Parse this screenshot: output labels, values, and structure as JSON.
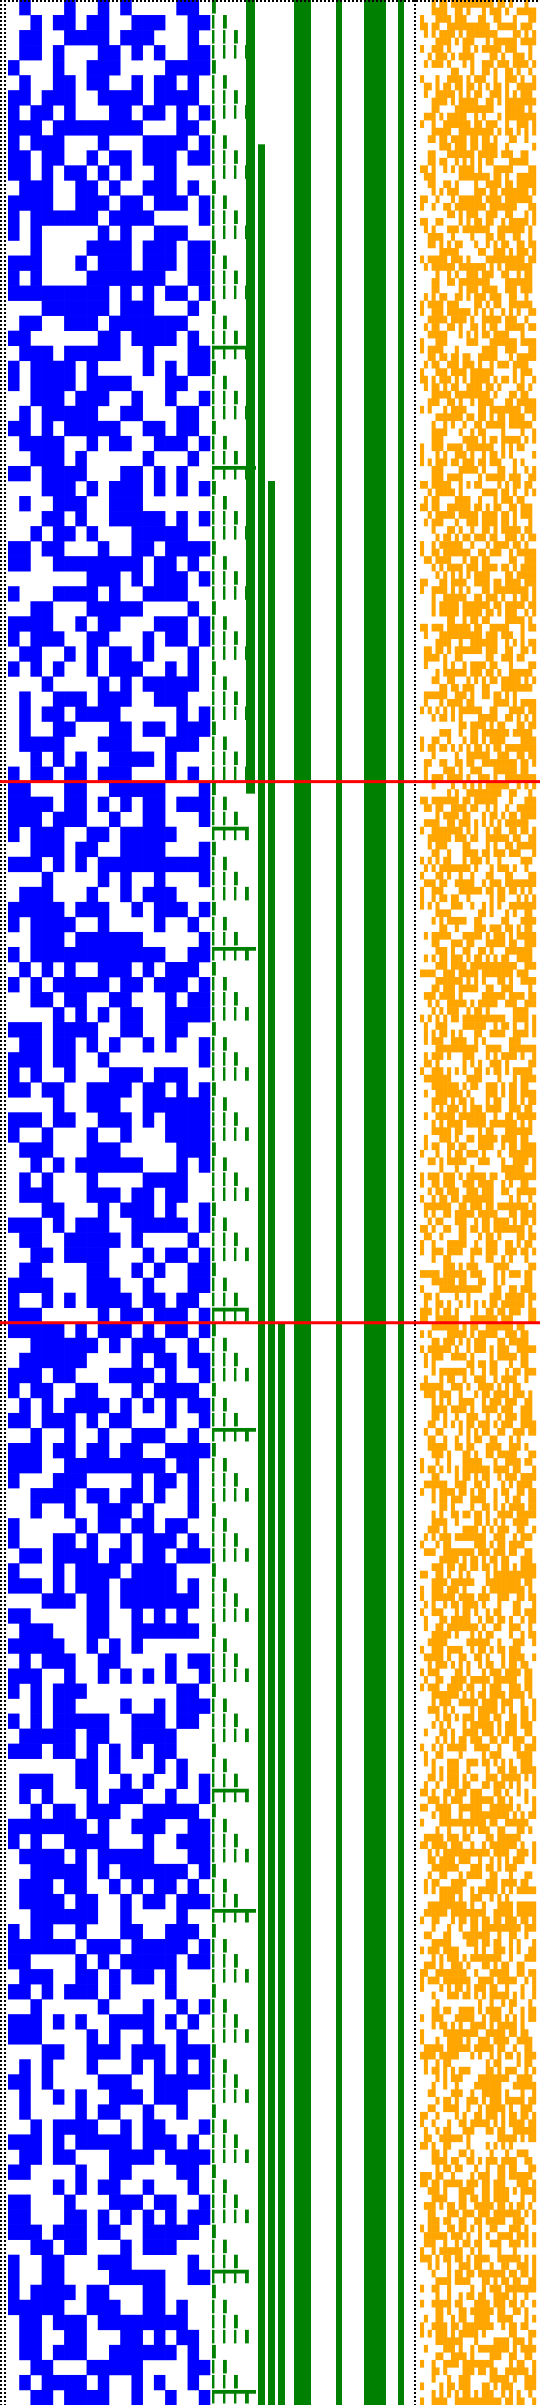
{
  "figure": {
    "rows": 160,
    "columns": 48,
    "regions": [
      {
        "name": "random-bits",
        "color": "#0000ff",
        "fill_fraction": 0.55,
        "columns": 18
      },
      {
        "name": "staircase",
        "color": "#008000",
        "columns": 6
      },
      {
        "name": "counter-bars",
        "color": "#008000",
        "columns": 10
      },
      {
        "name": "sparse-bits",
        "color": "#ffa500",
        "fill_fraction": 0.6,
        "columns": 10
      }
    ],
    "separators": {
      "color": "#ff0000",
      "after_rows": [
        52,
        88
      ]
    },
    "borders": {
      "left_color": "#000000",
      "middle_color": "#000000",
      "style": "dotted"
    },
    "seed": 1729
  }
}
